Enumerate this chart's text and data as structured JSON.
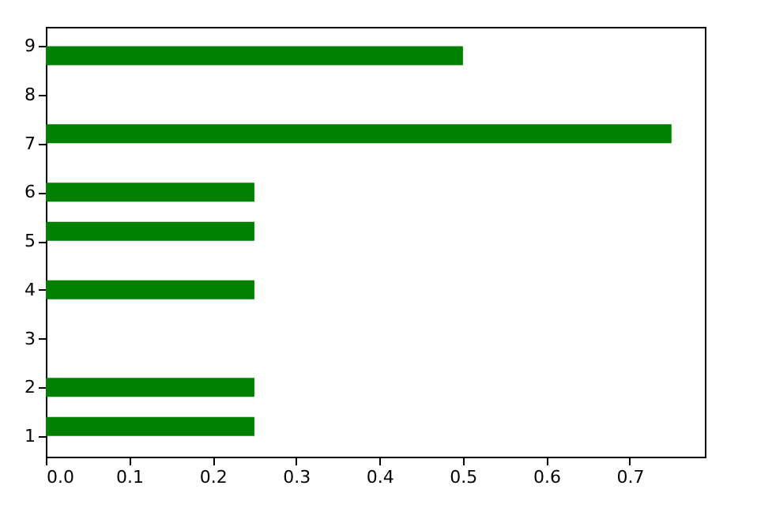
{
  "chart_data": {
    "type": "bar",
    "orientation": "horizontal",
    "x": [
      1.2,
      2.0,
      4.0,
      5.2,
      6.0,
      7.2,
      8.8
    ],
    "values": [
      0.25,
      0.25,
      0.25,
      0.25,
      0.25,
      0.75,
      0.5
    ],
    "color": "#008000",
    "xlim": [
      0,
      0.79
    ],
    "xticks": [
      {
        "value": 0,
        "label": "0.0"
      },
      0.1,
      0.2,
      0.3,
      0.4,
      0.5,
      0.6,
      0.7
    ],
    "ylim": [
      0.58,
      9.39
    ],
    "yticks": [
      1,
      2,
      3,
      4,
      5,
      6,
      7,
      8,
      9
    ],
    "grid": false
  }
}
